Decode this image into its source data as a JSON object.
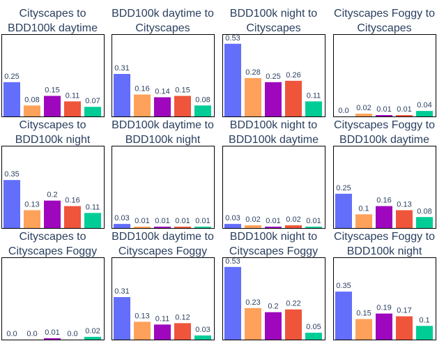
{
  "chart_data": [
    {
      "type": "bar",
      "title": [
        "Cityscapes to",
        "BDD100k daytime"
      ],
      "values": [
        0.25,
        0.08,
        0.15,
        0.11,
        0.07
      ],
      "labels": [
        "0.25",
        "0.08",
        "0.15",
        "0.11",
        "0.07"
      ]
    },
    {
      "type": "bar",
      "title": [
        "BDD100k daytime to",
        "Cityscapes"
      ],
      "values": [
        0.31,
        0.16,
        0.14,
        0.15,
        0.08
      ],
      "labels": [
        "0.31",
        "0.16",
        "0.14",
        "0.15",
        "0.08"
      ]
    },
    {
      "type": "bar",
      "title": [
        "BDD100k night to",
        "Cityscapes"
      ],
      "values": [
        0.53,
        0.28,
        0.25,
        0.26,
        0.11
      ],
      "labels": [
        "0.53",
        "0.28",
        "0.25",
        "0.26",
        "0.11"
      ]
    },
    {
      "type": "bar",
      "title": [
        "Cityscapes Foggy to",
        "Cityscapes"
      ],
      "values": [
        0.0,
        0.02,
        0.01,
        0.01,
        0.04
      ],
      "labels": [
        "0.0",
        "0.02",
        "0.01",
        "0.01",
        "0.04"
      ]
    },
    {
      "type": "bar",
      "title": [
        "Cityscapes to",
        "BDD100k night"
      ],
      "values": [
        0.35,
        0.13,
        0.2,
        0.16,
        0.11
      ],
      "labels": [
        "0.35",
        "0.13",
        "0.2",
        "0.16",
        "0.11"
      ]
    },
    {
      "type": "bar",
      "title": [
        "BDD100k daytime to",
        "BDD100k night"
      ],
      "values": [
        0.03,
        0.01,
        0.01,
        0.01,
        0.01
      ],
      "labels": [
        "0.03",
        "0.01",
        "0.01",
        "0.01",
        "0.01"
      ]
    },
    {
      "type": "bar",
      "title": [
        "BDD100k night to",
        "BDD100k daytime"
      ],
      "values": [
        0.03,
        0.02,
        0.01,
        0.02,
        0.01
      ],
      "labels": [
        "0.03",
        "0.02",
        "0.01",
        "0.02",
        "0.01"
      ]
    },
    {
      "type": "bar",
      "title": [
        "Cityscapes Foggy to",
        "BDD100k daytime"
      ],
      "values": [
        0.25,
        0.1,
        0.16,
        0.13,
        0.08
      ],
      "labels": [
        "0.25",
        "0.1",
        "0.16",
        "0.13",
        "0.08"
      ]
    },
    {
      "type": "bar",
      "title": [
        "Cityscapes to",
        "Cityscapes Foggy"
      ],
      "values": [
        0.0,
        0.0,
        0.01,
        0.0,
        0.02
      ],
      "labels": [
        "0.0",
        "0.0",
        "0.01",
        "0.0",
        "0.02"
      ]
    },
    {
      "type": "bar",
      "title": [
        "BDD100k daytime to",
        "Cityscapes Foggy"
      ],
      "values": [
        0.31,
        0.13,
        0.11,
        0.12,
        0.03
      ],
      "labels": [
        "0.31",
        "0.13",
        "0.11",
        "0.12",
        "0.03"
      ]
    },
    {
      "type": "bar",
      "title": [
        "BDD100k night to",
        "Cityscapes Foggy"
      ],
      "values": [
        0.53,
        0.23,
        0.2,
        0.22,
        0.05
      ],
      "labels": [
        "0.53",
        "0.23",
        "0.2",
        "0.22",
        "0.05"
      ]
    },
    {
      "type": "bar",
      "title": [
        "Cityscapes Foggy to",
        "BDD100k night"
      ],
      "values": [
        0.35,
        0.15,
        0.19,
        0.17,
        0.1
      ],
      "labels": [
        "0.35",
        "0.15",
        "0.19",
        "0.17",
        "0.1"
      ]
    }
  ],
  "colors": [
    "#636efa",
    "#fea15a",
    "#9e07be",
    "#ef553b",
    "#00cc96"
  ],
  "ylim": [
    0,
    0.6
  ],
  "grid": false,
  "legend": "none"
}
